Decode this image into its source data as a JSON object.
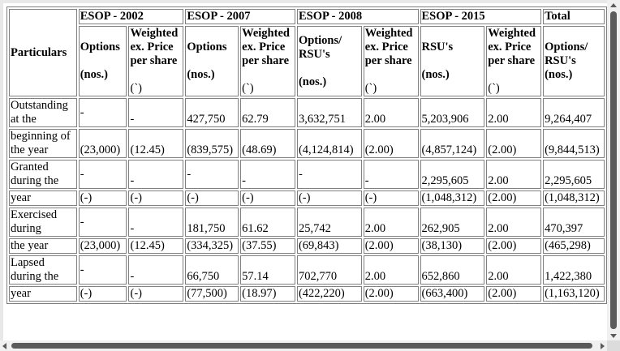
{
  "table": {
    "groups": [
      "ESOP - 2002",
      "ESOP - 2007",
      "ESOP - 2008",
      "ESOP - 2015",
      "Total"
    ],
    "particulars": "Particulars",
    "sub": {
      "e2002_opt": "Options",
      "e2002_opt_unit": "(nos.)",
      "e2002_wt": "Weighted ex. Price per share",
      "e2002_wt_unit": "(`)",
      "e2007_opt": "Options",
      "e2007_opt_unit": "(nos.)",
      "e2007_wt": "Weighted ex. Price per share",
      "e2007_wt_unit": "(`)",
      "e2008_opt": "Options/ RSU's",
      "e2008_opt_unit": "(nos.)",
      "e2008_wt": "Weighted ex. Price per share",
      "e2008_wt_unit": "(`)",
      "e2015_opt": "RSU's",
      "e2015_opt_unit": "(nos.)",
      "e2015_wt": "Weighted ex. Price per share",
      "e2015_wt_unit": "(`)",
      "total_opt": "Options/ RSU's (nos.)"
    },
    "rows": [
      [
        "Outstanding at the",
        "-",
        "-",
        "427,750",
        "62.79",
        "3,632,751",
        "2.00",
        "5,203,906",
        "2.00",
        "9,264,407"
      ],
      [
        "beginning of the year",
        "(23,000)",
        "(12.45)",
        "(839,575)",
        "(48.69)",
        "(4,124,814)",
        "(2.00)",
        "(4,857,124)",
        "(2.00)",
        "(9,844,513)"
      ],
      [
        "Granted during the",
        "-",
        "-",
        "-",
        "-",
        "-",
        "-",
        "2,295,605",
        "2.00",
        "2,295,605"
      ],
      [
        "year",
        "(-)",
        "(-)",
        "(-)",
        "(-)",
        "(-)",
        "(-)",
        "(1,048,312)",
        "(2.00)",
        "(1,048,312)"
      ],
      [
        "Exercised during",
        "-",
        "-",
        "181,750",
        "61.62",
        "25,742",
        "2.00",
        "262,905",
        "2.00",
        "470,397"
      ],
      [
        "the year",
        "(23,000)",
        "(12.45)",
        "(334,325)",
        "(37.55)",
        "(69,843)",
        "(2.00)",
        "(38,130)",
        "(2.00)",
        "(465,298)"
      ],
      [
        "Lapsed during the",
        "-",
        "-",
        "66,750",
        "57.14",
        "702,770",
        "2.00",
        "652,860",
        "2.00",
        "1,422,380"
      ],
      [
        "year",
        "(-)",
        "(-)",
        "(77,500)",
        "(18.97)",
        "(422,220)",
        "(2.00)",
        "(663,400)",
        "(2.00)",
        "(1,163,120)"
      ]
    ]
  }
}
